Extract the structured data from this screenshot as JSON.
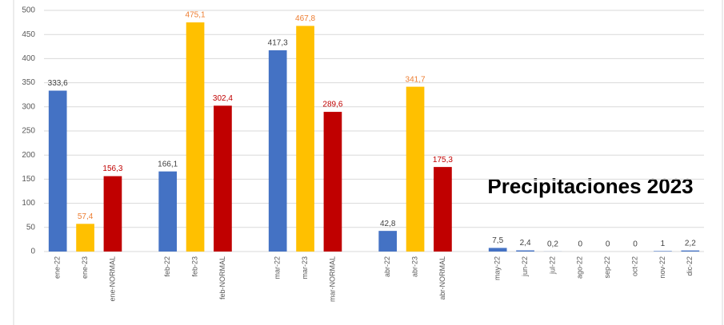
{
  "chart_data": {
    "type": "bar",
    "title": "Precipitaciones 2023",
    "categories": [
      "ene-22",
      "ene-23",
      "ene-NORMAL",
      null,
      "feb-22",
      "feb-23",
      "feb-NORMAL",
      null,
      "mar-22",
      "mar-23",
      "mar-NORMAL",
      null,
      "abr-22",
      "abr-23",
      "abr-NORMAL",
      null,
      "may-22",
      "jun-22",
      "jul-22",
      "ago-22",
      "sep-22",
      "oct-22",
      "nov-22",
      "dic-22"
    ],
    "values": [
      333.6,
      57.4,
      156.3,
      null,
      166.1,
      475.1,
      302.4,
      null,
      417.3,
      467.8,
      289.6,
      null,
      42.8,
      341.7,
      175.3,
      null,
      7.5,
      2.4,
      0.2,
      0,
      0,
      0,
      1,
      2.2
    ],
    "value_labels": [
      "333,6",
      "57,4",
      "156,3",
      null,
      "166,1",
      "475,1",
      "302,4",
      null,
      "417,3",
      "467,8",
      "289,6",
      null,
      "42,8",
      "341,7",
      "175,3",
      null,
      "7,5",
      "2,4",
      "0,2",
      "0",
      "0",
      "0",
      "1",
      "2,2"
    ],
    "colors": [
      "#4472c4",
      "#ffc000",
      "#c00000",
      null,
      "#4472c4",
      "#ffc000",
      "#c00000",
      null,
      "#4472c4",
      "#ffc000",
      "#c00000",
      null,
      "#4472c4",
      "#ffc000",
      "#c00000",
      null,
      "#4472c4",
      "#4472c4",
      "#4472c4",
      "#4472c4",
      "#4472c4",
      "#4472c4",
      "#4472c4",
      "#4472c4"
    ],
    "label_colors": [
      "#404040",
      "#ed7d31",
      "#c00000",
      null,
      "#404040",
      "#ed7d31",
      "#c00000",
      null,
      "#404040",
      "#ed7d31",
      "#c00000",
      null,
      "#404040",
      "#ed7d31",
      "#c00000",
      null,
      "#404040",
      "#404040",
      "#404040",
      "#404040",
      "#404040",
      "#404040",
      "#404040",
      "#404040"
    ],
    "ylim": [
      0,
      500
    ],
    "yticks": [
      0,
      50,
      100,
      150,
      200,
      250,
      300,
      350,
      400,
      450,
      500
    ],
    "grid": true
  }
}
